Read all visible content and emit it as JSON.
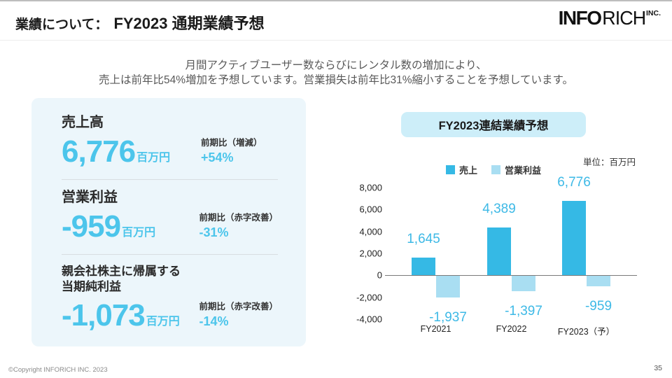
{
  "header": {
    "section_label": "業績について：",
    "title": "FY2023 通期業績予想",
    "logo": {
      "part1": "INFO",
      "part2": "RICH",
      "suffix": "INC."
    }
  },
  "subtitle": {
    "line1": "月間アクティブユーザー数ならびにレンタル数の増加により、",
    "line2": "売上は前年比54%増加を予想しています。営業損失は前年比31%縮小することを予想しています。"
  },
  "kpi": {
    "sections": [
      {
        "label": "売上高",
        "value": "6,776",
        "unit": "百万円",
        "yoy_label": "前期比（増減）",
        "yoy_value": "+54%"
      },
      {
        "label": "営業利益",
        "value": "-959",
        "unit": "百万円",
        "yoy_label": "前期比（赤字改善）",
        "yoy_value": "-31%"
      },
      {
        "label": "親会社株主に帰属する当期純利益",
        "value": "-1,073",
        "unit": "百万円",
        "yoy_label": "前期比（赤字改善）",
        "yoy_value": "-14%"
      }
    ]
  },
  "chart_data": {
    "type": "bar",
    "title": "FY2023連結業績予想",
    "unit_label": "単位：百万円",
    "categories": [
      "FY2021",
      "FY2022",
      "FY2023（予）"
    ],
    "series": [
      {
        "name": "売上",
        "color": "#35b9e5",
        "values": [
          1645,
          4389,
          6776
        ],
        "labels": [
          "1,645",
          "4,389",
          "6,776"
        ]
      },
      {
        "name": "営業利益",
        "color": "#a9def2",
        "values": [
          -1937,
          -1397,
          -959
        ],
        "labels": [
          "-1,937",
          "-1,397",
          "-959"
        ]
      }
    ],
    "ylim": [
      -4000,
      8000
    ],
    "yticks": [
      8000,
      6000,
      4000,
      2000,
      0,
      -2000,
      -4000
    ],
    "ytick_labels": [
      "8,000",
      "6,000",
      "4,000",
      "2,000",
      "0",
      "-2,000",
      "-4,000"
    ],
    "grid": false,
    "legend_position": "top"
  },
  "footer": {
    "copyright": "©Copyright INFORICH INC. 2023",
    "page_number": "35"
  },
  "colors": {
    "accent_blue": "#35b9e5",
    "light_blue": "#a9def2",
    "value_text_blue": "#4cc5eb",
    "chart_label_blue": "#3db9e6",
    "panel_bg": "#ecf6fb",
    "banner_bg": "#cdeef9"
  }
}
